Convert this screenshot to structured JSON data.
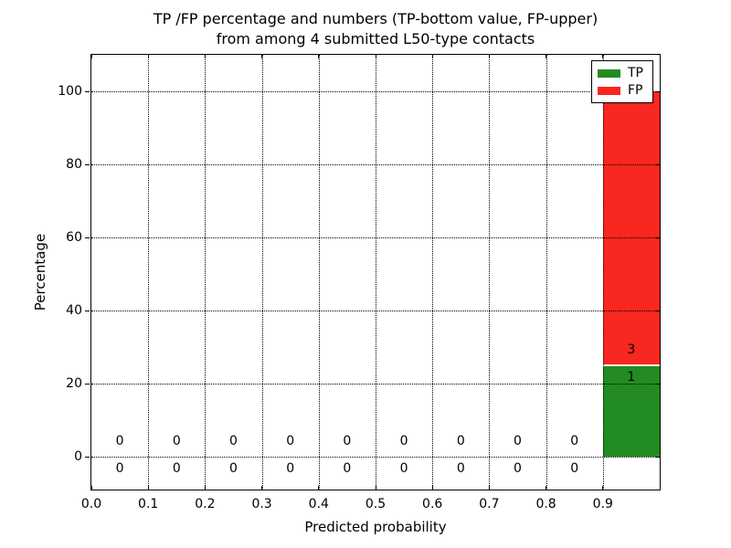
{
  "chart_data": {
    "type": "bar",
    "stacked": true,
    "title": "TP /FP percentage and numbers (TP-bottom value, FP-upper)\nfrom among 4 submitted L50-type contacts",
    "title_line1": "TP /FP percentage and numbers (TP-bottom value, FP-upper)",
    "title_line2": "from among 4 submitted L50-type contacts",
    "xlabel": "Predicted probability",
    "ylabel": "Percentage",
    "xlim": [
      0.0,
      1.0
    ],
    "ylim": [
      -9,
      110
    ],
    "grid": true,
    "grid_style": "dotted",
    "total_submitted": 4,
    "xtick_values": [
      0.0,
      0.1,
      0.2,
      0.3,
      0.4,
      0.5,
      0.6,
      0.7,
      0.8,
      0.9
    ],
    "xtick_labels": [
      "0.0",
      "0.1",
      "0.2",
      "0.3",
      "0.4",
      "0.5",
      "0.6",
      "0.7",
      "0.8",
      "0.9"
    ],
    "ytick_values": [
      0,
      20,
      40,
      60,
      80,
      100
    ],
    "ytick_labels": [
      "0",
      "20",
      "40",
      "60",
      "80",
      "100"
    ],
    "series": [
      {
        "name": "TP",
        "color": "#228b22"
      },
      {
        "name": "FP",
        "color": "#f8271f"
      }
    ],
    "bins": [
      {
        "range": [
          0.0,
          0.1
        ],
        "tp": 0,
        "fp": 0,
        "tp_pct": 0,
        "fp_pct": 0
      },
      {
        "range": [
          0.1,
          0.2
        ],
        "tp": 0,
        "fp": 0,
        "tp_pct": 0,
        "fp_pct": 0
      },
      {
        "range": [
          0.2,
          0.3
        ],
        "tp": 0,
        "fp": 0,
        "tp_pct": 0,
        "fp_pct": 0
      },
      {
        "range": [
          0.3,
          0.4
        ],
        "tp": 0,
        "fp": 0,
        "tp_pct": 0,
        "fp_pct": 0
      },
      {
        "range": [
          0.4,
          0.5
        ],
        "tp": 0,
        "fp": 0,
        "tp_pct": 0,
        "fp_pct": 0
      },
      {
        "range": [
          0.5,
          0.6
        ],
        "tp": 0,
        "fp": 0,
        "tp_pct": 0,
        "fp_pct": 0
      },
      {
        "range": [
          0.6,
          0.7
        ],
        "tp": 0,
        "fp": 0,
        "tp_pct": 0,
        "fp_pct": 0
      },
      {
        "range": [
          0.7,
          0.8
        ],
        "tp": 0,
        "fp": 0,
        "tp_pct": 0,
        "fp_pct": 0
      },
      {
        "range": [
          0.8,
          0.9
        ],
        "tp": 0,
        "fp": 0,
        "tp_pct": 0,
        "fp_pct": 0
      },
      {
        "range": [
          0.9,
          1.0
        ],
        "tp": 1,
        "fp": 3,
        "tp_pct": 25,
        "fp_pct": 75
      }
    ],
    "legend": {
      "position": "upper right",
      "entries": [
        {
          "label": "TP",
          "color": "#228b22"
        },
        {
          "label": "FP",
          "color": "#f8271f"
        }
      ]
    }
  }
}
